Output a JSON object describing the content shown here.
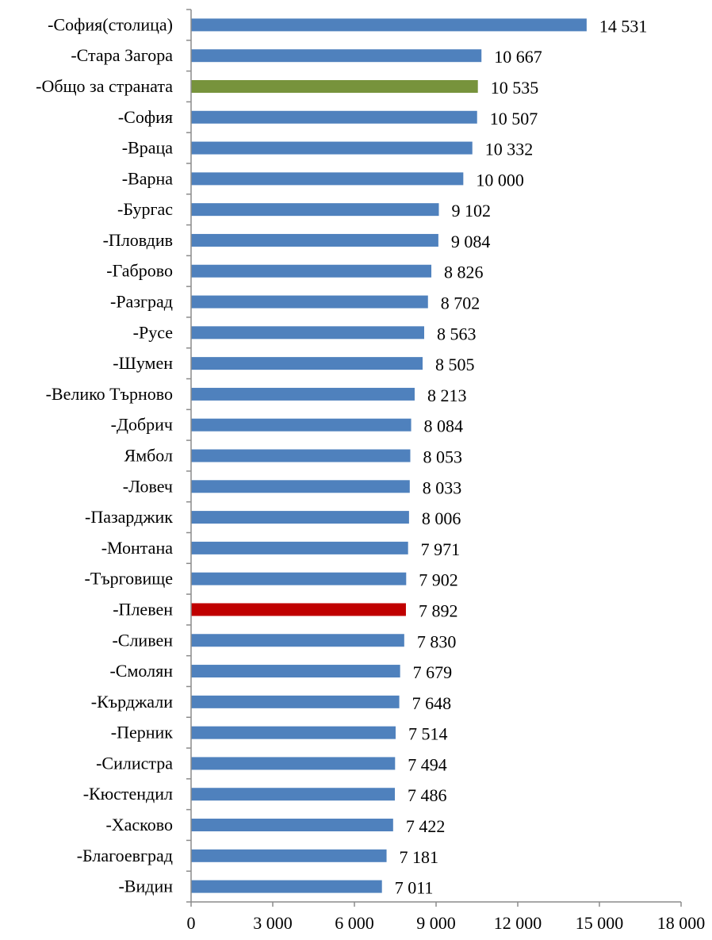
{
  "chart_data": {
    "type": "bar",
    "orientation": "horizontal",
    "categories": [
      "-София(столица)",
      "-Стара Загора",
      "-Общо за страната",
      "-София",
      "-Враца",
      "-Варна",
      "-Бургас",
      "-Пловдив",
      "-Габрово",
      "-Разград",
      "-Русе",
      "-Шумен",
      "-Велико Търново",
      "-Добрич",
      "Ямбол",
      "-Ловеч",
      "-Пазарджик",
      "-Монтана",
      "-Търговище",
      "-Плевен",
      "-Сливен",
      "-Смолян",
      "-Кърджали",
      "-Перник",
      "-Силистра",
      "-Кюстендил",
      "-Хасково",
      "-Благоевград",
      "-Видин"
    ],
    "values": [
      14531,
      10667,
      10535,
      10507,
      10332,
      10000,
      9102,
      9084,
      8826,
      8702,
      8563,
      8505,
      8213,
      8084,
      8053,
      8033,
      8006,
      7971,
      7902,
      7892,
      7830,
      7679,
      7648,
      7514,
      7494,
      7486,
      7422,
      7181,
      7011
    ],
    "value_labels": [
      "14 531",
      "10 667",
      "10 535",
      "10 507",
      "10 332",
      "10 000",
      "9 102",
      "9 084",
      "8 826",
      "8 702",
      "8 563",
      "8 505",
      "8 213",
      "8 084",
      "8 053",
      "8 033",
      "8 006",
      "7 971",
      "7 902",
      "7 892",
      "7 830",
      "7 679",
      "7 648",
      "7 514",
      "7 494",
      "7 486",
      "7 422",
      "7 181",
      "7 011"
    ],
    "xlim": [
      0,
      18000
    ],
    "x_ticks": [
      0,
      3000,
      6000,
      9000,
      12000,
      15000,
      18000
    ],
    "x_tick_labels": [
      "0",
      "3 000",
      "6 000",
      "9 000",
      "12 000",
      "15 000",
      "18 000"
    ],
    "title": "",
    "xlabel": "",
    "ylabel": "",
    "grid": false,
    "legend": "none",
    "colors": {
      "default": "#4f81bd",
      "highlight_country": "#77933c",
      "highlight_region": "#c00000"
    },
    "bar_colors": [
      "default",
      "default",
      "highlight_country",
      "default",
      "default",
      "default",
      "default",
      "default",
      "default",
      "default",
      "default",
      "default",
      "default",
      "default",
      "default",
      "default",
      "default",
      "default",
      "default",
      "highlight_region",
      "default",
      "default",
      "default",
      "default",
      "default",
      "default",
      "default",
      "default",
      "default"
    ]
  }
}
